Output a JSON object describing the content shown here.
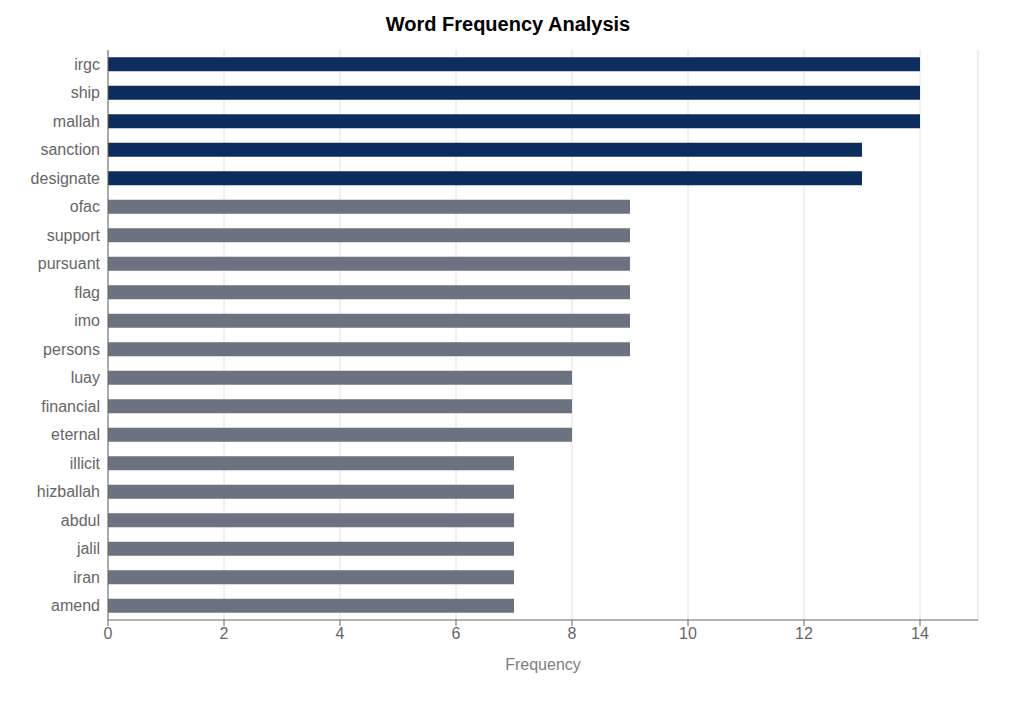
{
  "chart_data": {
    "type": "bar",
    "title": "Word Frequency Analysis",
    "orientation": "horizontal",
    "categories": [
      "amend",
      "iran",
      "jalil",
      "abdul",
      "hizballah",
      "illicit",
      "eternal",
      "financial",
      "luay",
      "persons",
      "imo",
      "flag",
      "pursuant",
      "support",
      "ofac",
      "designate",
      "sanction",
      "mallah",
      "ship",
      "irgc"
    ],
    "values": [
      7,
      7,
      7,
      7,
      7,
      7,
      8,
      8,
      8,
      9,
      9,
      9,
      9,
      9,
      9,
      13,
      13,
      14,
      14,
      14
    ],
    "colors": [
      "#6b7280",
      "#6b7280",
      "#6b7280",
      "#6b7280",
      "#6b7280",
      "#6b7280",
      "#6b7280",
      "#6b7280",
      "#6b7280",
      "#6b7280",
      "#6b7280",
      "#6b7280",
      "#6b7280",
      "#6b7280",
      "#6b7280",
      "#0c2d5e",
      "#0c2d5e",
      "#0c2d5e",
      "#0c2d5e",
      "#0c2d5e"
    ],
    "xlabel": "Frequency",
    "xlim": [
      0,
      15
    ],
    "xticks": [
      0,
      2,
      4,
      6,
      8,
      10,
      12,
      14
    ],
    "grid": true
  }
}
